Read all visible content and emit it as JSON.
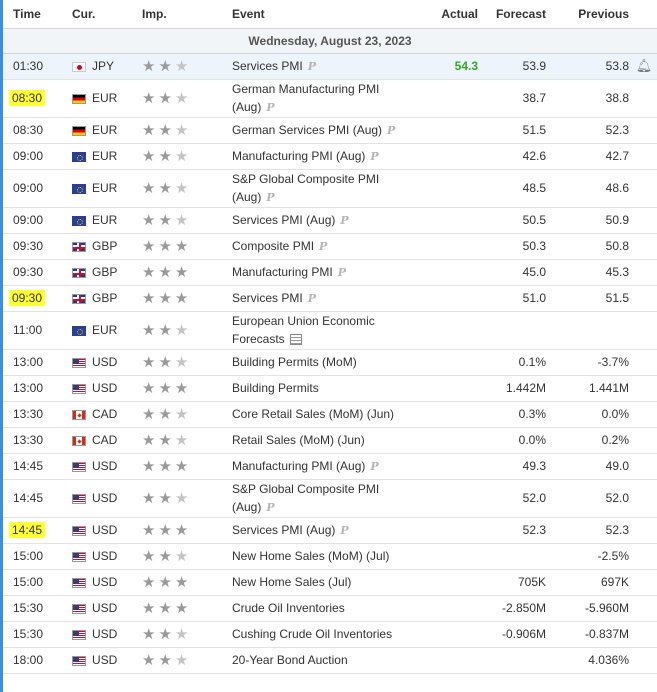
{
  "headers": {
    "time": "Time",
    "cur": "Cur.",
    "imp": "Imp.",
    "event": "Event",
    "actual": "Actual",
    "forecast": "Forecast",
    "previous": "Previous"
  },
  "date_label": "Wednesday, August 23, 2023",
  "colors": {
    "accent": "#3a8ee6",
    "highlight": "#ffff33",
    "actual_better": "#2eac1d"
  },
  "rows": [
    {
      "time": "01:30",
      "cur": "JPY",
      "flag": "jp",
      "stars": 2,
      "event": "Services PMI",
      "event2": "",
      "pm": "P",
      "actual": "54.3",
      "forecast": "53.9",
      "previous": "53.8",
      "highlight_time": false,
      "bell": "bell-plus-icon"
    },
    {
      "time": "08:30",
      "cur": "EUR",
      "flag": "de",
      "stars": 2,
      "event": "German Manufacturing PMI",
      "event2": "(Aug)",
      "pm": "P",
      "actual": "",
      "forecast": "38.7",
      "previous": "38.8",
      "highlight_time": true
    },
    {
      "time": "08:30",
      "cur": "EUR",
      "flag": "de",
      "stars": 2,
      "event": "German Services PMI (Aug)",
      "event2": "",
      "pm": "P",
      "actual": "",
      "forecast": "51.5",
      "previous": "52.3",
      "highlight_time": false
    },
    {
      "time": "09:00",
      "cur": "EUR",
      "flag": "eu",
      "stars": 2,
      "event": "Manufacturing PMI (Aug)",
      "event2": "",
      "pm": "P",
      "actual": "",
      "forecast": "42.6",
      "previous": "42.7",
      "highlight_time": false
    },
    {
      "time": "09:00",
      "cur": "EUR",
      "flag": "eu",
      "stars": 2,
      "event": "S&P Global Composite PMI",
      "event2": "(Aug)",
      "pm": "P",
      "actual": "",
      "forecast": "48.5",
      "previous": "48.6",
      "highlight_time": false
    },
    {
      "time": "09:00",
      "cur": "EUR",
      "flag": "eu",
      "stars": 2,
      "event": "Services PMI (Aug)",
      "event2": "",
      "pm": "P",
      "actual": "",
      "forecast": "50.5",
      "previous": "50.9",
      "highlight_time": false
    },
    {
      "time": "09:30",
      "cur": "GBP",
      "flag": "gb",
      "stars": 3,
      "event": "Composite PMI",
      "event2": "",
      "pm": "P",
      "actual": "",
      "forecast": "50.3",
      "previous": "50.8",
      "highlight_time": false
    },
    {
      "time": "09:30",
      "cur": "GBP",
      "flag": "gb",
      "stars": 3,
      "event": "Manufacturing PMI",
      "event2": "",
      "pm": "P",
      "actual": "",
      "forecast": "45.0",
      "previous": "45.3",
      "highlight_time": false
    },
    {
      "time": "09:30",
      "cur": "GBP",
      "flag": "gb",
      "stars": 3,
      "event": "Services PMI",
      "event2": "",
      "pm": "P",
      "actual": "",
      "forecast": "51.0",
      "previous": "51.5",
      "highlight_time": true
    },
    {
      "time": "11:00",
      "cur": "EUR",
      "flag": "eu",
      "stars": 2,
      "event": "European Union Economic",
      "event2": "Forecasts",
      "pm": "",
      "doc": true,
      "actual": "",
      "forecast": "",
      "previous": "",
      "highlight_time": false
    },
    {
      "time": "13:00",
      "cur": "USD",
      "flag": "us",
      "stars": 2,
      "event": "Building Permits (MoM)",
      "event2": "",
      "pm": "",
      "actual": "",
      "forecast": "0.1%",
      "previous": "-3.7%",
      "highlight_time": false
    },
    {
      "time": "13:00",
      "cur": "USD",
      "flag": "us",
      "stars": 3,
      "event": "Building Permits",
      "event2": "",
      "pm": "",
      "actual": "",
      "forecast": "1.442M",
      "previous": "1.441M",
      "highlight_time": false
    },
    {
      "time": "13:30",
      "cur": "CAD",
      "flag": "ca",
      "stars": 2,
      "event": "Core Retail Sales (MoM) (Jun)",
      "event2": "",
      "pm": "",
      "actual": "",
      "forecast": "0.3%",
      "previous": "0.0%",
      "highlight_time": false
    },
    {
      "time": "13:30",
      "cur": "CAD",
      "flag": "ca",
      "stars": 2,
      "event": "Retail Sales (MoM) (Jun)",
      "event2": "",
      "pm": "",
      "actual": "",
      "forecast": "0.0%",
      "previous": "0.2%",
      "highlight_time": false
    },
    {
      "time": "14:45",
      "cur": "USD",
      "flag": "us",
      "stars": 3,
      "event": "Manufacturing PMI (Aug)",
      "event2": "",
      "pm": "P",
      "actual": "",
      "forecast": "49.3",
      "previous": "49.0",
      "highlight_time": false
    },
    {
      "time": "14:45",
      "cur": "USD",
      "flag": "us",
      "stars": 2,
      "event": "S&P Global Composite PMI",
      "event2": "(Aug)",
      "pm": "P",
      "actual": "",
      "forecast": "52.0",
      "previous": "52.0",
      "highlight_time": false
    },
    {
      "time": "14:45",
      "cur": "USD",
      "flag": "us",
      "stars": 3,
      "event": "Services PMI (Aug)",
      "event2": "",
      "pm": "P",
      "actual": "",
      "forecast": "52.3",
      "previous": "52.3",
      "highlight_time": true
    },
    {
      "time": "15:00",
      "cur": "USD",
      "flag": "us",
      "stars": 2,
      "event": "New Home Sales (MoM) (Jul)",
      "event2": "",
      "pm": "",
      "actual": "",
      "forecast": "",
      "previous": "-2.5%",
      "highlight_time": false
    },
    {
      "time": "15:00",
      "cur": "USD",
      "flag": "us",
      "stars": 3,
      "event": "New Home Sales (Jul)",
      "event2": "",
      "pm": "",
      "actual": "",
      "forecast": "705K",
      "previous": "697K",
      "highlight_time": false
    },
    {
      "time": "15:30",
      "cur": "USD",
      "flag": "us",
      "stars": 3,
      "event": "Crude Oil Inventories",
      "event2": "",
      "pm": "",
      "actual": "",
      "forecast": "-2.850M",
      "previous": "-5.960M",
      "highlight_time": false
    },
    {
      "time": "15:30",
      "cur": "USD",
      "flag": "us",
      "stars": 2,
      "event": "Cushing Crude Oil Inventories",
      "event2": "",
      "pm": "",
      "actual": "",
      "forecast": "-0.906M",
      "previous": "-0.837M",
      "highlight_time": false
    },
    {
      "time": "18:00",
      "cur": "USD",
      "flag": "us",
      "stars": 2,
      "event": "20-Year Bond Auction",
      "event2": "",
      "pm": "",
      "actual": "",
      "forecast": "",
      "previous": "4.036%",
      "highlight_time": false
    }
  ]
}
